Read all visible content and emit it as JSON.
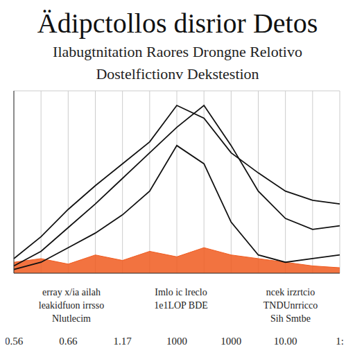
{
  "chart_data": {
    "type": "line",
    "title": "Ädipctollos disrior Detos",
    "subtitle": [
      "Ilabugtnitation Raores Drongne Relotivo",
      "Dostelfictionv Dekstestion"
    ],
    "annotations": [
      [
        "erray x/ia ailah",
        "leakidfuon irrsso",
        "Nlutlecim"
      ],
      [
        "Imlo ic lreclo",
        "1e1LOP BDE"
      ],
      [
        "ncek irzrtcio",
        "TNDUnrricco",
        "Sih Smtbe"
      ]
    ],
    "categories": [
      "0.56",
      null,
      "0.66",
      null,
      "1.17",
      null,
      "1000",
      null,
      "1000",
      null,
      "10.00",
      null,
      "1:"
    ],
    "series": [
      {
        "type": "line",
        "color": "#111111",
        "values": [
          8,
          20,
          35,
          48,
          60,
          72,
          92,
          85,
          66,
          55,
          45,
          40,
          38
        ]
      },
      {
        "type": "line",
        "color": "#111111",
        "values": [
          4,
          12,
          25,
          38,
          52,
          66,
          80,
          92,
          70,
          45,
          30,
          24,
          26
        ]
      },
      {
        "type": "line",
        "color": "#111111",
        "values": [
          2,
          6,
          14,
          22,
          32,
          45,
          70,
          60,
          28,
          10,
          6,
          8,
          10
        ]
      },
      {
        "type": "area",
        "color": "#f05a1e",
        "values": [
          6,
          8,
          5,
          10,
          7,
          12,
          9,
          14,
          10,
          8,
          6,
          4,
          3
        ]
      }
    ],
    "ylim": [
      0,
      100
    ],
    "yticks": [
      0,
      20,
      40,
      60,
      80,
      100
    ],
    "grid": true,
    "tick_labels": "x"
  }
}
